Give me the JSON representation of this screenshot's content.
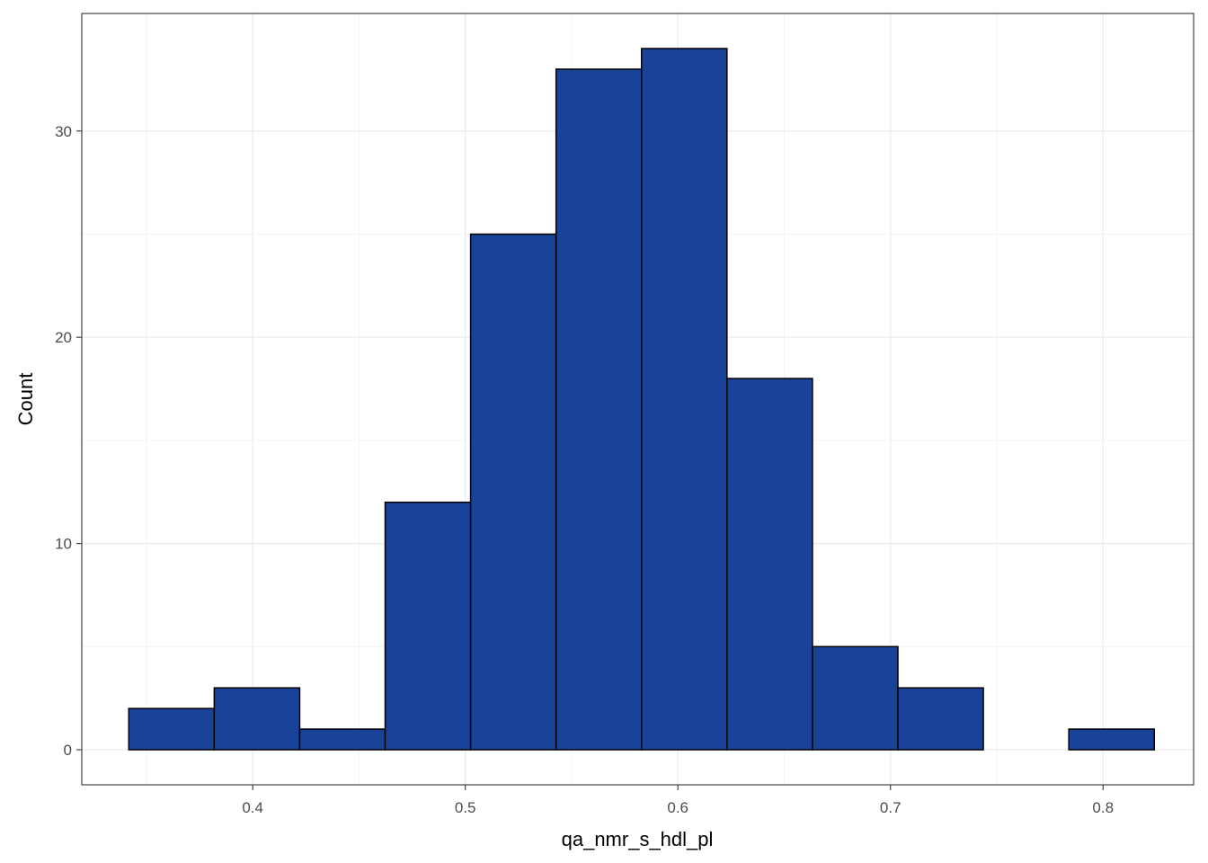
{
  "chart_data": {
    "type": "bar",
    "subtype": "histogram",
    "title": "",
    "xlabel": "qa_nmr_s_hdl_pl",
    "ylabel": "Count",
    "xlim": [
      0.3196,
      0.8426
    ],
    "ylim": [
      -1.7,
      35.7
    ],
    "x_ticks": [
      0.4,
      0.5,
      0.6,
      0.7,
      0.8
    ],
    "x_tick_labels": [
      "0.4",
      "0.5",
      "0.6",
      "0.7",
      "0.8"
    ],
    "y_ticks": [
      0,
      10,
      20,
      30
    ],
    "y_tick_labels": [
      "0",
      "10",
      "20",
      "30"
    ],
    "x_minor_gridlines": [
      0.35,
      0.45,
      0.55,
      0.65,
      0.75
    ],
    "y_minor_gridlines": [
      5,
      15,
      25
    ],
    "bins": [
      {
        "x0": 0.3417,
        "x1": 0.3819,
        "count": 2
      },
      {
        "x0": 0.3819,
        "x1": 0.4221,
        "count": 3
      },
      {
        "x0": 0.4221,
        "x1": 0.4623,
        "count": 1
      },
      {
        "x0": 0.4623,
        "x1": 0.5025,
        "count": 12
      },
      {
        "x0": 0.5025,
        "x1": 0.5427,
        "count": 25
      },
      {
        "x0": 0.5427,
        "x1": 0.5829,
        "count": 33
      },
      {
        "x0": 0.5829,
        "x1": 0.6231,
        "count": 34
      },
      {
        "x0": 0.6231,
        "x1": 0.6633,
        "count": 18
      },
      {
        "x0": 0.6633,
        "x1": 0.7035,
        "count": 5
      },
      {
        "x0": 0.7035,
        "x1": 0.7437,
        "count": 3
      },
      {
        "x0": 0.7437,
        "x1": 0.7839,
        "count": 0
      },
      {
        "x0": 0.7839,
        "x1": 0.8241,
        "count": 1
      }
    ],
    "grid": true,
    "theme": "bw",
    "colors": {
      "bar_fill": "#184399",
      "bar_stroke": "#000000",
      "grid_major": "#ebebeb",
      "grid_minor": "#f4f4f4",
      "panel_border": "#333333",
      "tick_text": "#4d4d4d"
    }
  }
}
